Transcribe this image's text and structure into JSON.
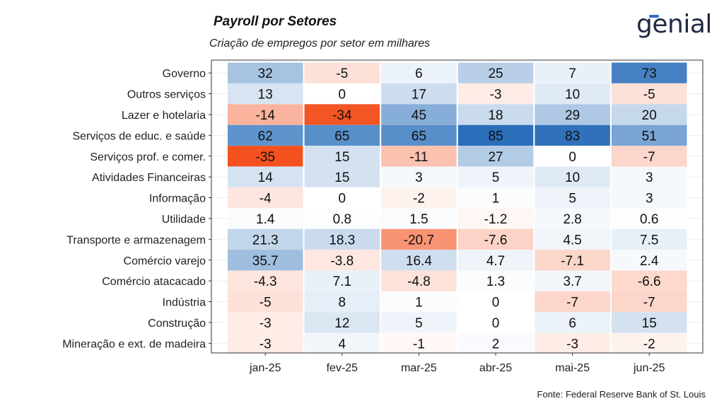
{
  "header": {
    "title": "Payroll por Setores",
    "subtitle": "Criação de empregos por setor em milhares",
    "logo_text": "genial",
    "source": "Fonte: Federal Reserve Bank of St. Louis"
  },
  "colors": {
    "positive_max": "#2b6fba",
    "negative_max": "#f4511e",
    "neutral": "#ffffff",
    "frame": "#333333",
    "grid": "#ebebeb"
  },
  "chart_data": {
    "type": "heatmap",
    "title": "Payroll por Setores",
    "subtitle": "Criação de empregos por setor em milhares",
    "x": [
      "jan-25",
      "fev-25",
      "mar-25",
      "abr-25",
      "mai-25",
      "jun-25"
    ],
    "y": [
      "Governo",
      "Outros serviços",
      "Lazer e hotelaria",
      "Serviços de educ. e saúde",
      "Serviços prof. e comer.",
      "Atividades Financeiras",
      "Informação",
      "Utilidade",
      "Transporte e armazenagem",
      "Comércio varejo",
      "Comércio atacacado",
      "Indústria",
      "Construção",
      "Mineração e ext. de madeira"
    ],
    "labels": [
      [
        "32",
        "-5",
        "6",
        "25",
        "7",
        "73"
      ],
      [
        "13",
        "0",
        "17",
        "-3",
        "10",
        "-5"
      ],
      [
        "-14",
        "-34",
        "45",
        "18",
        "29",
        "20"
      ],
      [
        "62",
        "65",
        "65",
        "85",
        "83",
        "51"
      ],
      [
        "-35",
        "15",
        "-11",
        "27",
        "0",
        "-7"
      ],
      [
        "14",
        "15",
        "3",
        "5",
        "10",
        "3"
      ],
      [
        "-4",
        "0",
        "-2",
        "1",
        "5",
        "3"
      ],
      [
        "1.4",
        "0.8",
        "1.5",
        "-1.2",
        "2.8",
        "0.6"
      ],
      [
        "21.3",
        "18.3",
        "-20.7",
        "-7.6",
        "4.5",
        "7.5"
      ],
      [
        "35.7",
        "-3.8",
        "16.4",
        "4.7",
        "-7.1",
        "2.4"
      ],
      [
        "-4.3",
        "7.1",
        "-4.8",
        "1.3",
        "3.7",
        "-6.6"
      ],
      [
        "-5",
        "8",
        "1",
        "0",
        "-7",
        "-7"
      ],
      [
        "-3",
        "12",
        "5",
        "0",
        "6",
        "15"
      ],
      [
        "-3",
        "4",
        "-1",
        "2",
        "-3",
        "-2"
      ]
    ],
    "scale": {
      "positive_max": 85,
      "negative_max": -35
    },
    "grid": true,
    "legend": "none"
  }
}
